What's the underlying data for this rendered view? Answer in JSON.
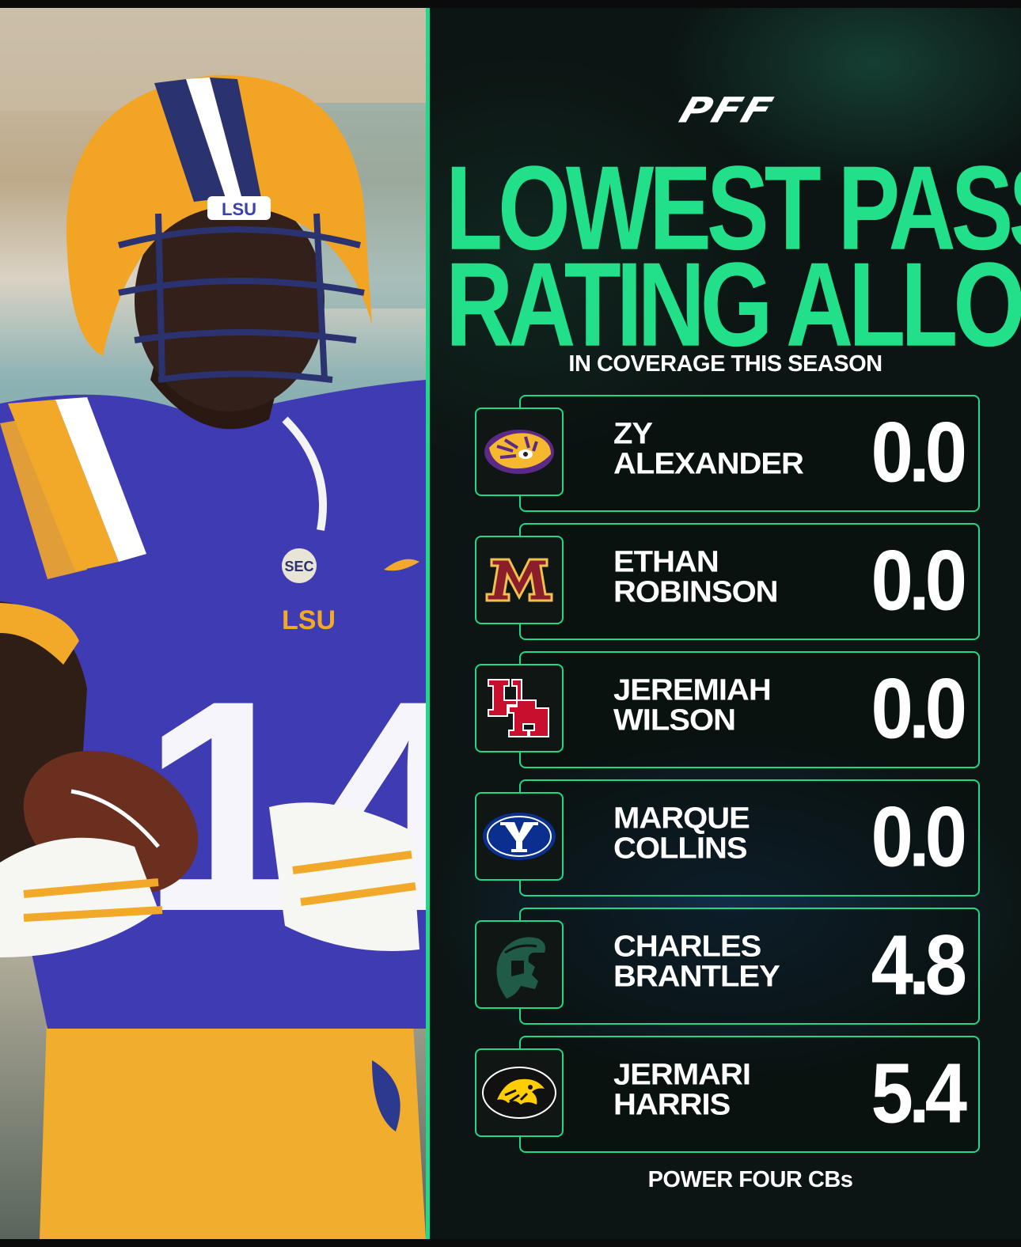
{
  "brand": {
    "logo_text": "PFF"
  },
  "headline": {
    "line1": "LOWEST PASSER",
    "line2": "RATING ALLOWED"
  },
  "subheadline": "IN COVERAGE THIS SEASON",
  "rows": [
    {
      "first": "ZY",
      "last": "ALEXANDER",
      "rating": "0.0",
      "logo": "lsu-tiger-icon"
    },
    {
      "first": "ETHAN",
      "last": "ROBINSON",
      "rating": "0.0",
      "logo": "minnesota-m-icon"
    },
    {
      "first": "JEREMIAH",
      "last": "WILSON",
      "rating": "0.0",
      "logo": "houston-uh-icon"
    },
    {
      "first": "MARQUE",
      "last": "COLLINS",
      "rating": "0.0",
      "logo": "byu-y-icon"
    },
    {
      "first": "CHARLES",
      "last": "BRANTLEY",
      "rating": "4.8",
      "logo": "michigan-state-spartan-icon"
    },
    {
      "first": "JERMARI",
      "last": "HARRIS",
      "rating": "5.4",
      "logo": "iowa-tigerhawk-icon"
    }
  ],
  "footer": "POWER FOUR CBs",
  "photo": {
    "jersey_number": "14",
    "helmet_text": "LSU",
    "chest_text": "LSU",
    "patch_text": "SEC"
  },
  "colors": {
    "accent": "#22e08a",
    "panel_bg": "#0c1513",
    "lsu_purple": "#3b3fb0",
    "lsu_gold": "#f2a92a"
  }
}
